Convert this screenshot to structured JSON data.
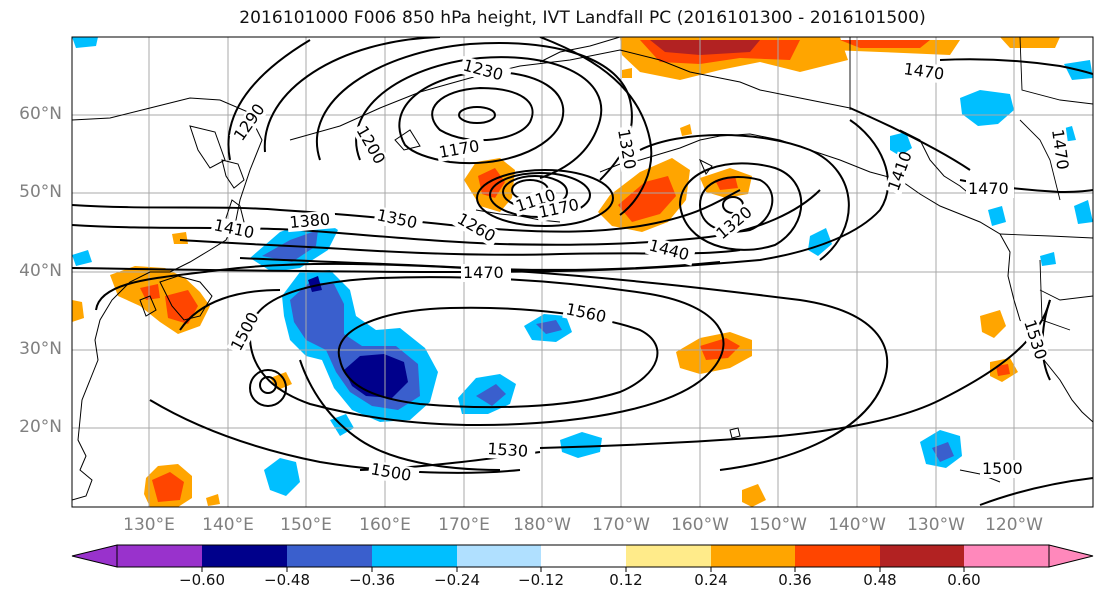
{
  "title": "2016101000 F006 850 hPa height, IVT Landfall PC (2016101300 - 2016101500)",
  "lat_labels": [
    "60°N",
    "50°N",
    "40°N",
    "30°N",
    "20°N"
  ],
  "lon_labels": [
    "130°E",
    "140°E",
    "150°E",
    "160°E",
    "170°E",
    "180°W",
    "170°W",
    "160°W",
    "150°W",
    "140°W",
    "130°W",
    "120°W"
  ],
  "contour_labels": [
    "1230",
    "1290",
    "1200",
    "1170",
    "1320",
    "1470",
    "1470",
    "1470",
    "1410",
    "1380",
    "1350",
    "1260",
    "1110",
    "1170",
    "1440",
    "1320",
    "1470",
    "1560",
    "1500",
    "1530",
    "1530",
    "1500",
    "1500",
    "1410"
  ],
  "colorbar": {
    "ticks": [
      "−0.60",
      "−0.48",
      "−0.36",
      "−0.24",
      "−0.12",
      "0.12",
      "0.24",
      "0.36",
      "0.48",
      "0.60"
    ],
    "colors": [
      "#9932cc",
      "#00008b",
      "#3a5fcd",
      "#00bfff",
      "#b0e0ff",
      "#ffffff",
      "#ffeb8a",
      "#ffa500",
      "#ff4500",
      "#b22222",
      "#ff88bb"
    ]
  },
  "colors": {
    "neg_strong": "#00008b",
    "neg_mid": "#3a5fcd",
    "neg_light": "#00bfff",
    "neg_faint": "#b0e0ff",
    "pos_faint": "#ffeb8a",
    "pos_light": "#ffa500",
    "pos_mid": "#ff4500",
    "pos_strong": "#b22222"
  }
}
